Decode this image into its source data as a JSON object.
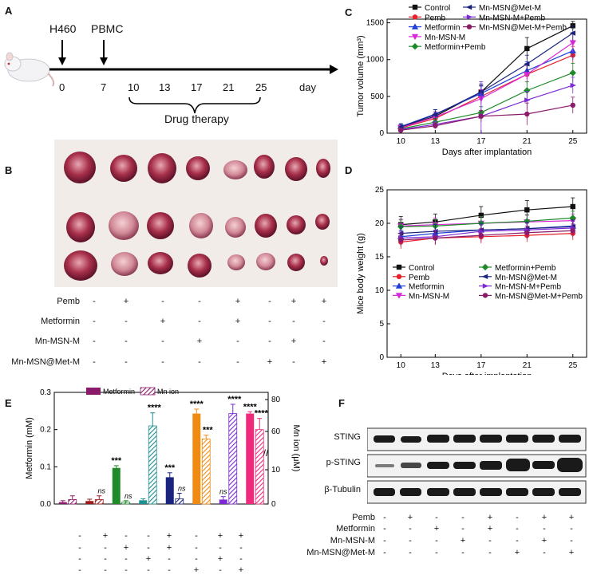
{
  "panels": {
    "A": "A",
    "B": "B",
    "C": "C",
    "D": "D",
    "E": "E",
    "F": "F"
  },
  "panelA": {
    "events": [
      "H460",
      "PBMC"
    ],
    "days": [
      "0",
      "7",
      "10",
      "13",
      "17",
      "21",
      "25"
    ],
    "axis_unit": "day",
    "brace_label": "Drug therapy"
  },
  "treatments": {
    "names": [
      "Pemb",
      "Metformin",
      "Mn-MSN-M",
      "Mn-MSN@Met-M"
    ],
    "matrixB": [
      [
        "-",
        "+",
        "-",
        "-",
        "+",
        "-",
        "+",
        "+"
      ],
      [
        "-",
        "-",
        "+",
        "-",
        "+",
        "-",
        "-",
        "-"
      ],
      [
        "-",
        "-",
        "-",
        "+",
        "-",
        "-",
        "+",
        "-"
      ],
      [
        "-",
        "-",
        "-",
        "-",
        "-",
        "+",
        "-",
        "+"
      ]
    ],
    "matrixE": [
      [
        "-",
        "+",
        "-",
        "-",
        "+",
        "-",
        "+",
        "+"
      ],
      [
        "-",
        "-",
        "+",
        "-",
        "+",
        "-",
        "-",
        "-"
      ],
      [
        "-",
        "-",
        "-",
        "+",
        "-",
        "-",
        "+",
        "-"
      ],
      [
        "-",
        "-",
        "-",
        "-",
        "-",
        "+",
        "-",
        "+"
      ]
    ],
    "matrixF": [
      [
        "-",
        "+",
        "-",
        "-",
        "+",
        "-",
        "+",
        "+"
      ],
      [
        "-",
        "-",
        "+",
        "-",
        "+",
        "-",
        "-",
        "-"
      ],
      [
        "-",
        "-",
        "-",
        "+",
        "-",
        "-",
        "+",
        "-"
      ],
      [
        "-",
        "-",
        "-",
        "-",
        "-",
        "+",
        "-",
        "+"
      ]
    ]
  },
  "panelF": {
    "bands": [
      "STING",
      "p-STING",
      "β-Tubulin"
    ]
  },
  "chart_data": [
    {
      "id": "C",
      "type": "line",
      "xlabel": "Days after implantation",
      "ylabel": "Tumor volume (mm³)",
      "x": [
        10,
        13,
        17,
        21,
        25
      ],
      "xticks": [
        "10",
        "13",
        "17",
        "21",
        "25"
      ],
      "yticks": [
        "0",
        "500",
        "1000",
        "1500"
      ],
      "ylim": [
        0,
        1550
      ],
      "series": [
        {
          "name": "Control",
          "color": "#111111",
          "marker": "s",
          "values": [
            80,
            230,
            560,
            1150,
            1460
          ],
          "err": [
            30,
            60,
            90,
            150,
            60
          ]
        },
        {
          "name": "Pemb",
          "color": "#e8202a",
          "marker": "o",
          "values": [
            70,
            200,
            500,
            800,
            1060
          ],
          "err": [
            30,
            60,
            90,
            120,
            120
          ]
        },
        {
          "name": "Metformin",
          "color": "#1f3ed8",
          "marker": "^",
          "values": [
            90,
            260,
            540,
            850,
            1120
          ],
          "err": [
            40,
            60,
            100,
            120,
            130
          ]
        },
        {
          "name": "Mn-MSN-M",
          "color": "#d62ad6",
          "marker": "v",
          "values": [
            75,
            220,
            470,
            800,
            1230
          ],
          "err": [
            30,
            70,
            120,
            140,
            130
          ]
        },
        {
          "name": "Metformin+Pemb",
          "color": "#1e8a2a",
          "marker": "D",
          "values": [
            60,
            150,
            280,
            580,
            820
          ],
          "err": [
            30,
            50,
            80,
            120,
            130
          ]
        },
        {
          "name": "Mn-MSN@Met-M",
          "color": "#1a237e",
          "marker": "<",
          "values": [
            85,
            250,
            560,
            940,
            1360
          ],
          "err": [
            40,
            70,
            110,
            120,
            100
          ]
        },
        {
          "name": "Mn-MSN-M+Pemb",
          "color": "#7d2ad6",
          "marker": ">",
          "values": [
            50,
            120,
            230,
            450,
            650
          ],
          "err": [
            20,
            40,
            470,
            120,
            110
          ]
        },
        {
          "name": "Mn-MSN@Met-M+Pemb",
          "color": "#8b1a6b",
          "marker": "o",
          "values": [
            40,
            100,
            230,
            260,
            380
          ],
          "err": [
            20,
            40,
            80,
            150,
            110
          ]
        }
      ]
    },
    {
      "id": "D",
      "type": "line",
      "xlabel": "Days after implantation",
      "ylabel": "Mice body weight (g)",
      "x": [
        10,
        13,
        17,
        21,
        25
      ],
      "xticks": [
        "10",
        "13",
        "17",
        "21",
        "25"
      ],
      "yticks": [
        "0",
        "5",
        "10",
        "15",
        "20",
        "25"
      ],
      "ylim": [
        0,
        25
      ],
      "series": [
        {
          "name": "Control",
          "color": "#111111",
          "marker": "s",
          "values": [
            19.8,
            20.2,
            21.2,
            22.0,
            22.5
          ],
          "err": [
            1.2,
            1.2,
            1.3,
            1.4,
            1.3
          ]
        },
        {
          "name": "Pemb",
          "color": "#e8202a",
          "marker": "o",
          "values": [
            17.2,
            17.8,
            18.0,
            18.2,
            18.5
          ],
          "err": [
            1.0,
            1.0,
            1.0,
            1.0,
            1.0
          ]
        },
        {
          "name": "Metformin",
          "color": "#1f3ed8",
          "marker": "^",
          "values": [
            18.0,
            18.5,
            19.0,
            19.2,
            19.6
          ],
          "err": [
            1.0,
            1.0,
            1.0,
            1.0,
            1.0
          ]
        },
        {
          "name": "Mn-MSN-M",
          "color": "#d62ad6",
          "marker": "v",
          "values": [
            19.6,
            19.8,
            20.0,
            20.2,
            20.4
          ],
          "err": [
            1.0,
            1.0,
            1.0,
            1.0,
            1.0
          ]
        },
        {
          "name": "Metformin+Pemb",
          "color": "#1e8a2a",
          "marker": "D",
          "values": [
            19.5,
            19.6,
            20.0,
            20.3,
            20.8
          ],
          "err": [
            1.0,
            1.0,
            1.0,
            1.0,
            1.0
          ]
        },
        {
          "name": "Mn-MSN@Met-M",
          "color": "#1a237e",
          "marker": "<",
          "values": [
            18.5,
            18.8,
            19.0,
            19.2,
            19.5
          ],
          "err": [
            1.0,
            1.0,
            1.0,
            1.0,
            1.0
          ]
        },
        {
          "name": "Mn-MSN-M+Pemb",
          "color": "#7d2ad6",
          "marker": ">",
          "values": [
            17.8,
            18.0,
            18.8,
            19.0,
            19.3
          ],
          "err": [
            1.0,
            1.0,
            1.0,
            1.0,
            1.0
          ]
        },
        {
          "name": "Mn-MSN@Met-M+Pemb",
          "color": "#8b1a6b",
          "marker": "o",
          "values": [
            17.5,
            17.8,
            18.2,
            18.6,
            18.9
          ],
          "err": [
            1.0,
            1.0,
            1.0,
            1.0,
            1.0
          ]
        }
      ]
    },
    {
      "id": "E",
      "type": "bar",
      "ylabel": "Metformin (mM)",
      "y2label": "Mn ion (μM)",
      "legend": [
        "Metformin",
        "Mn ion"
      ],
      "yticks": [
        "0.0",
        "0.1",
        "0.2",
        "0.3"
      ],
      "ylim": [
        0,
        0.3
      ],
      "y2ticks_low": [
        "0",
        "10"
      ],
      "y2ticks_high": [
        "60",
        "80"
      ],
      "metformin": [
        0.005,
        0.008,
        0.097,
        0.01,
        0.072,
        0.243,
        0.012,
        0.243
      ],
      "metformin_err": [
        0.004,
        0.005,
        0.006,
        0.004,
        0.012,
        0.012,
        0.008,
        0.005
      ],
      "mn_ion": [
        0.012,
        0.012,
        0.005,
        0.21,
        0.014,
        0.175,
        0.243,
        0.2
      ],
      "mn_ion_err": [
        0.01,
        0.01,
        0.004,
        0.035,
        0.015,
        0.01,
        0.025,
        0.03
      ],
      "colors": [
        "#8b1a6b",
        "#a01818",
        "#1e8a2a",
        "#1f8f8f",
        "#1a237e",
        "#f08a10",
        "#7d2ad6",
        "#ee2a7b"
      ],
      "annotations_metformin": [
        "",
        "",
        "***",
        "",
        "***",
        "****",
        "ns",
        "****"
      ],
      "annotations_mn": [
        "",
        "ns",
        "ns",
        "****",
        "ns",
        "***",
        "****",
        "****"
      ]
    }
  ]
}
